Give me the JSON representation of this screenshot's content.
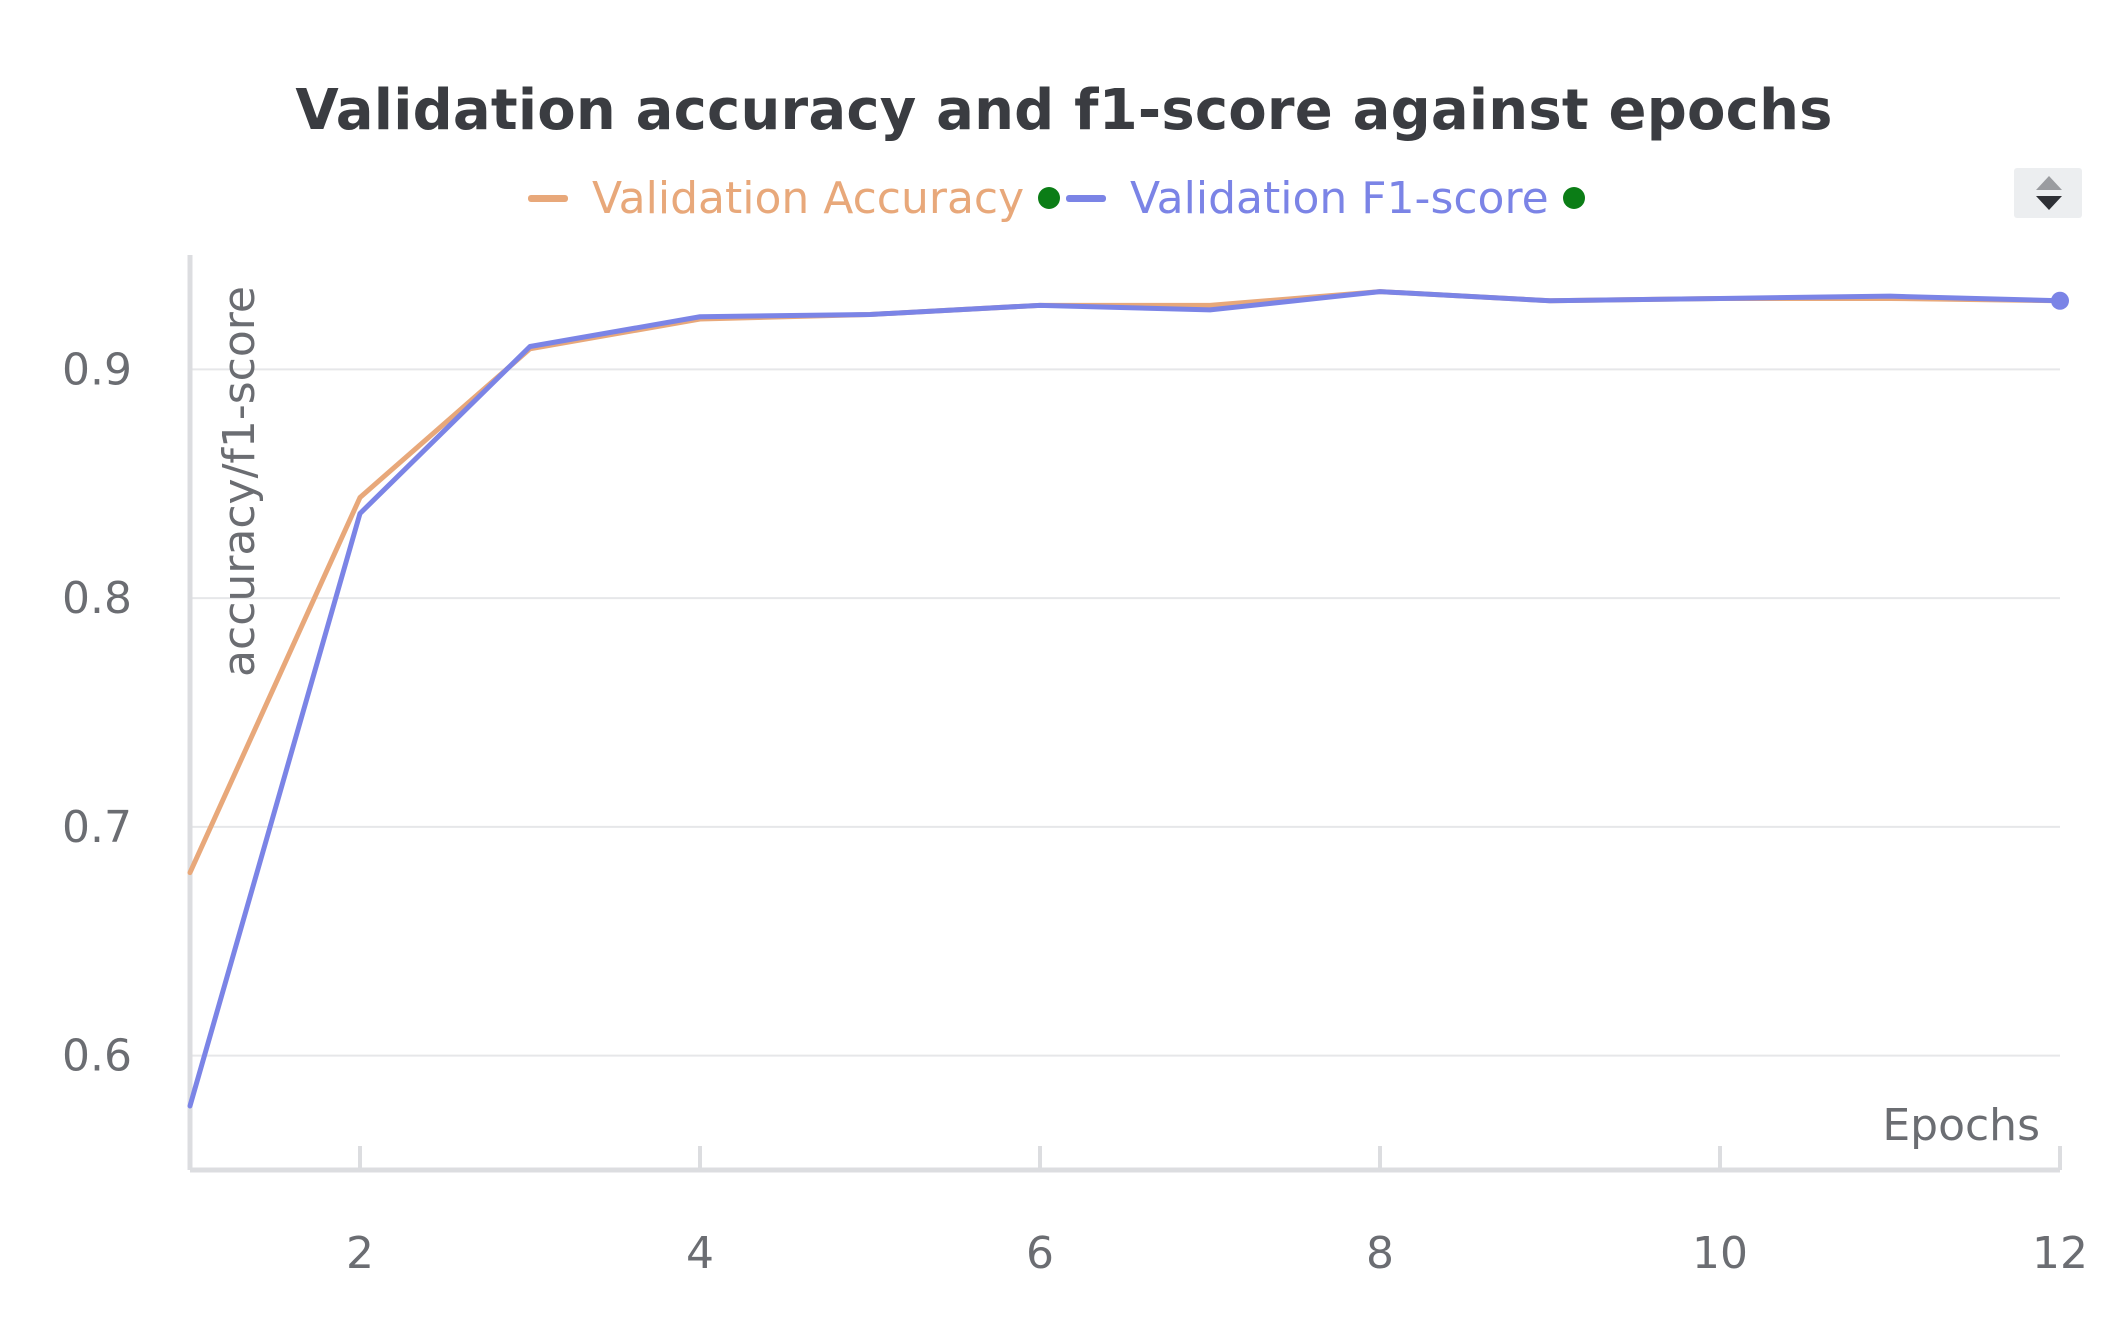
{
  "chart_data": {
    "type": "line",
    "title": "Validation accuracy and f1-score against epochs",
    "xlabel": "Epochs",
    "ylabel": "accuracy/f1-score",
    "xlim": [
      1,
      12
    ],
    "ylim": [
      0.55,
      0.95
    ],
    "x_ticks": [
      2,
      4,
      6,
      8,
      10,
      12
    ],
    "y_ticks": [
      0.6,
      0.7,
      0.8,
      0.9
    ],
    "grid": "horizontal",
    "legend_position": "top",
    "x": [
      1,
      2,
      3,
      4,
      5,
      6,
      7,
      8,
      9,
      10,
      11,
      12
    ],
    "series": [
      {
        "name": "Validation Accuracy",
        "color": "#e8a87a",
        "values": [
          0.68,
          0.844,
          0.909,
          0.922,
          0.924,
          0.928,
          0.928,
          0.934,
          0.93,
          0.931,
          0.931,
          0.93
        ]
      },
      {
        "name": "Validation F1-score",
        "color": "#7b84e6",
        "values": [
          0.578,
          0.837,
          0.91,
          0.923,
          0.924,
          0.928,
          0.926,
          0.934,
          0.93,
          0.931,
          0.932,
          0.93
        ]
      }
    ]
  },
  "legend_dot_color": "#0b7d16",
  "controls": {
    "scroll_icon": "up-down-arrows-icon"
  }
}
